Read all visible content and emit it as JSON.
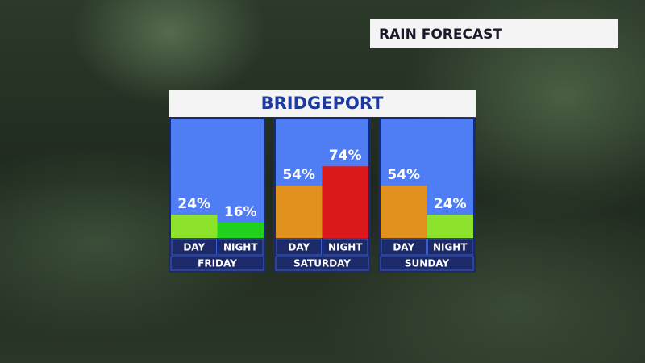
{
  "header": {
    "title": "RAIN FORECAST"
  },
  "chart_data": {
    "type": "bar",
    "title": "BRIDGEPORT",
    "categories": [
      "FRIDAY",
      "SATURDAY",
      "SUNDAY"
    ],
    "series": [
      {
        "name": "DAY",
        "values": [
          24,
          54,
          54
        ],
        "value_labels": [
          "24%",
          "54%",
          "54%"
        ],
        "colors": [
          "#8de32b",
          "#e0901d",
          "#e0901d"
        ]
      },
      {
        "name": "NIGHT",
        "values": [
          16,
          74,
          24
        ],
        "value_labels": [
          "16%",
          "74%",
          "24%"
        ],
        "colors": [
          "#22d11d",
          "#d9191b",
          "#8de32b"
        ]
      }
    ]
  }
}
